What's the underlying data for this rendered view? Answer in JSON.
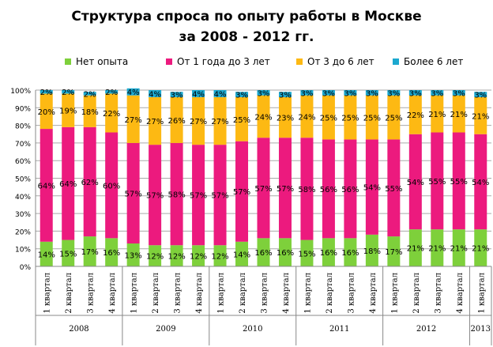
{
  "chart_data": {
    "type": "bar",
    "stacked": true,
    "title_line1": "Структура спроса по опыту работы в Москве",
    "title_line2": "за 2008 - 2012 гг.",
    "categories": [
      "1 квартал",
      "2 квартал",
      "3 квартал",
      "4 квартал",
      "1 квартал",
      "2 квартал",
      "3 квартал",
      "4 квартал",
      "1 квартал",
      "2 квартал",
      "3 квартал",
      "4 квартал",
      "1 квартал",
      "2 квартал",
      "3 квартал",
      "4 квартал",
      "1 квартал",
      "2 квартал",
      "3 квартал",
      "4 квартал",
      "1 квартал"
    ],
    "years": [
      {
        "label": "2008",
        "count": 4
      },
      {
        "label": "2009",
        "count": 4
      },
      {
        "label": "2010",
        "count": 4
      },
      {
        "label": "2011",
        "count": 4
      },
      {
        "label": "2012",
        "count": 4
      },
      {
        "label": "2013",
        "count": 1
      }
    ],
    "yticks": [
      "0%",
      "10%",
      "20%",
      "30%",
      "40%",
      "50%",
      "60%",
      "70%",
      "80%",
      "90%",
      "100%"
    ],
    "ylim": [
      0,
      100
    ],
    "legend_placement": "top",
    "series": [
      {
        "name": "Нет опыта",
        "color": "#7ED03B",
        "values": [
          14,
          15,
          17,
          16,
          13,
          12,
          12,
          12,
          12,
          14,
          16,
          16,
          15,
          16,
          16,
          18,
          17,
          21,
          21,
          21,
          21
        ]
      },
      {
        "name": "От 1 года до 3 лет",
        "color": "#EC1A7E",
        "values": [
          64,
          64,
          62,
          60,
          57,
          57,
          58,
          57,
          57,
          57,
          57,
          57,
          58,
          56,
          56,
          54,
          55,
          54,
          55,
          55,
          54
        ]
      },
      {
        "name": "От 3 до 6 лет",
        "color": "#FDB913",
        "values": [
          20,
          19,
          18,
          22,
          27,
          27,
          26,
          27,
          27,
          25,
          24,
          23,
          24,
          25,
          25,
          25,
          25,
          22,
          21,
          21,
          21
        ]
      },
      {
        "name": "Более 6 лет",
        "color": "#1BA8CF",
        "values": [
          2,
          2,
          2,
          2,
          4,
          4,
          3,
          4,
          4,
          3,
          3,
          3,
          3,
          3,
          3,
          3,
          3,
          3,
          3,
          3,
          3
        ]
      }
    ]
  }
}
